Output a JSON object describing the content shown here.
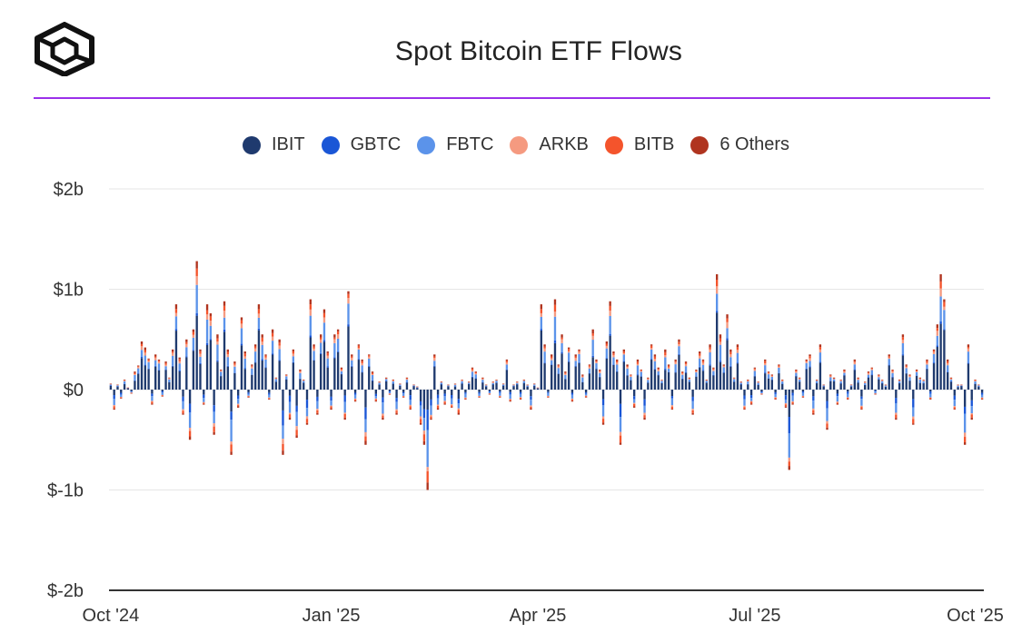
{
  "header": {
    "title": "Spot Bitcoin ETF Flows",
    "accent_color": "#9b30ea"
  },
  "legend": [
    {
      "label": "IBIT",
      "color": "#1f3a6e"
    },
    {
      "label": "GBTC",
      "color": "#1a56d6"
    },
    {
      "label": "FBTC",
      "color": "#5b93ea"
    },
    {
      "label": "ARKB",
      "color": "#f59a80"
    },
    {
      "label": "BITB",
      "color": "#f4542c"
    },
    {
      "label": "6 Others",
      "color": "#b0341f"
    }
  ],
  "chart_data": {
    "type": "bar",
    "stacked": true,
    "title": "Spot Bitcoin ETF Flows",
    "xlabel": "",
    "ylabel": "",
    "ylim": [
      -2,
      2
    ],
    "y_unit": "billions USD",
    "y_ticks": [
      {
        "value": 2,
        "label": "$2b"
      },
      {
        "value": 1,
        "label": "$1b"
      },
      {
        "value": 0,
        "label": "$0"
      },
      {
        "value": -1,
        "label": "$-1b"
      },
      {
        "value": -2,
        "label": "$-2b"
      }
    ],
    "x_ticks": [
      {
        "index": 0,
        "label": "Oct '24"
      },
      {
        "index": 64,
        "label": "Jan '25"
      },
      {
        "index": 124,
        "label": "Apr '25"
      },
      {
        "index": 187,
        "label": "Jul '25"
      },
      {
        "index": 251,
        "label": "Oct '25"
      }
    ],
    "series_names": [
      "IBIT",
      "GBTC",
      "FBTC",
      "ARKB",
      "BITB",
      "6 Others"
    ],
    "series_colors": [
      "#1f3a6e",
      "#1a56d6",
      "#5b93ea",
      "#f59a80",
      "#f4542c",
      "#b0341f"
    ],
    "net_flows": [
      0.06,
      -0.2,
      0.05,
      -0.09,
      0.1,
      0.02,
      -0.04,
      0.18,
      0.24,
      0.48,
      0.42,
      0.31,
      -0.15,
      0.35,
      0.3,
      -0.07,
      0.28,
      0.12,
      0.4,
      0.85,
      0.32,
      -0.25,
      0.5,
      -0.5,
      0.6,
      1.28,
      0.4,
      -0.15,
      0.85,
      0.76,
      -0.45,
      0.55,
      0.2,
      0.88,
      0.4,
      -0.65,
      0.28,
      -0.18,
      0.72,
      0.38,
      -0.08,
      0.25,
      0.45,
      0.85,
      0.55,
      0.35,
      -0.1,
      0.6,
      0.12,
      0.5,
      -0.65,
      0.15,
      -0.3,
      0.4,
      -0.48,
      0.2,
      0.1,
      -0.35,
      0.9,
      0.45,
      -0.25,
      0.55,
      0.8,
      0.38,
      -0.2,
      0.55,
      0.6,
      0.22,
      -0.3,
      0.98,
      0.35,
      -0.12,
      0.45,
      0.3,
      -0.55,
      0.35,
      0.18,
      -0.12,
      0.08,
      -0.3,
      0.12,
      -0.05,
      0.1,
      -0.25,
      0.06,
      -0.08,
      0.12,
      -0.2,
      0.05,
      0.03,
      -0.35,
      -0.55,
      -1.0,
      -0.3,
      0.35,
      -0.2,
      0.08,
      -0.15,
      0.05,
      -0.18,
      0.06,
      -0.25,
      0.1,
      -0.1,
      0.08,
      0.22,
      0.18,
      -0.08,
      0.12,
      0.05,
      -0.05,
      0.08,
      0.1,
      -0.08,
      0.06,
      0.3,
      -0.12,
      0.05,
      0.08,
      -0.1,
      0.1,
      0.05,
      -0.2,
      0.06,
      0.02,
      0.85,
      0.45,
      -0.08,
      0.35,
      0.9,
      0.25,
      0.55,
      0.18,
      0.42,
      -0.12,
      0.35,
      0.4,
      0.15,
      -0.08,
      0.25,
      0.6,
      0.3,
      0.2,
      -0.35,
      0.48,
      0.88,
      0.38,
      0.3,
      -0.55,
      0.4,
      0.25,
      0.15,
      -0.18,
      0.3,
      0.2,
      -0.3,
      0.12,
      0.45,
      0.35,
      0.22,
      0.1,
      0.4,
      0.25,
      -0.2,
      0.3,
      0.5,
      0.18,
      0.28,
      0.12,
      -0.25,
      0.2,
      0.38,
      0.3,
      0.1,
      0.45,
      0.22,
      1.15,
      0.55,
      0.25,
      0.75,
      0.4,
      0.12,
      0.45,
      0.08,
      -0.2,
      0.1,
      -0.15,
      0.22,
      0.08,
      -0.05,
      0.3,
      0.18,
      0.15,
      -0.1,
      0.25,
      0.1,
      -0.18,
      -0.8,
      -0.15,
      0.2,
      0.12,
      -0.08,
      0.3,
      0.35,
      -0.25,
      0.1,
      0.45,
      0.05,
      -0.4,
      0.15,
      0.12,
      -0.15,
      0.1,
      0.2,
      -0.1,
      0.05,
      0.3,
      0.12,
      -0.2,
      0.08,
      0.18,
      0.22,
      -0.05,
      0.15,
      0.1,
      0.05,
      0.35,
      0.2,
      -0.3,
      0.1,
      0.55,
      0.25,
      0.15,
      -0.35,
      0.2,
      0.12,
      0.1,
      0.3,
      -0.1,
      0.4,
      0.65,
      1.15,
      0.9,
      0.3,
      0.12,
      -0.2,
      0.05,
      0.05,
      -0.55,
      0.45,
      -0.3,
      0.1,
      0.05,
      -0.1
    ],
    "composition_note": "Each day is a stacked bar split across IBIT, GBTC, FBTC, ARKB, BITB and 6 Others"
  }
}
